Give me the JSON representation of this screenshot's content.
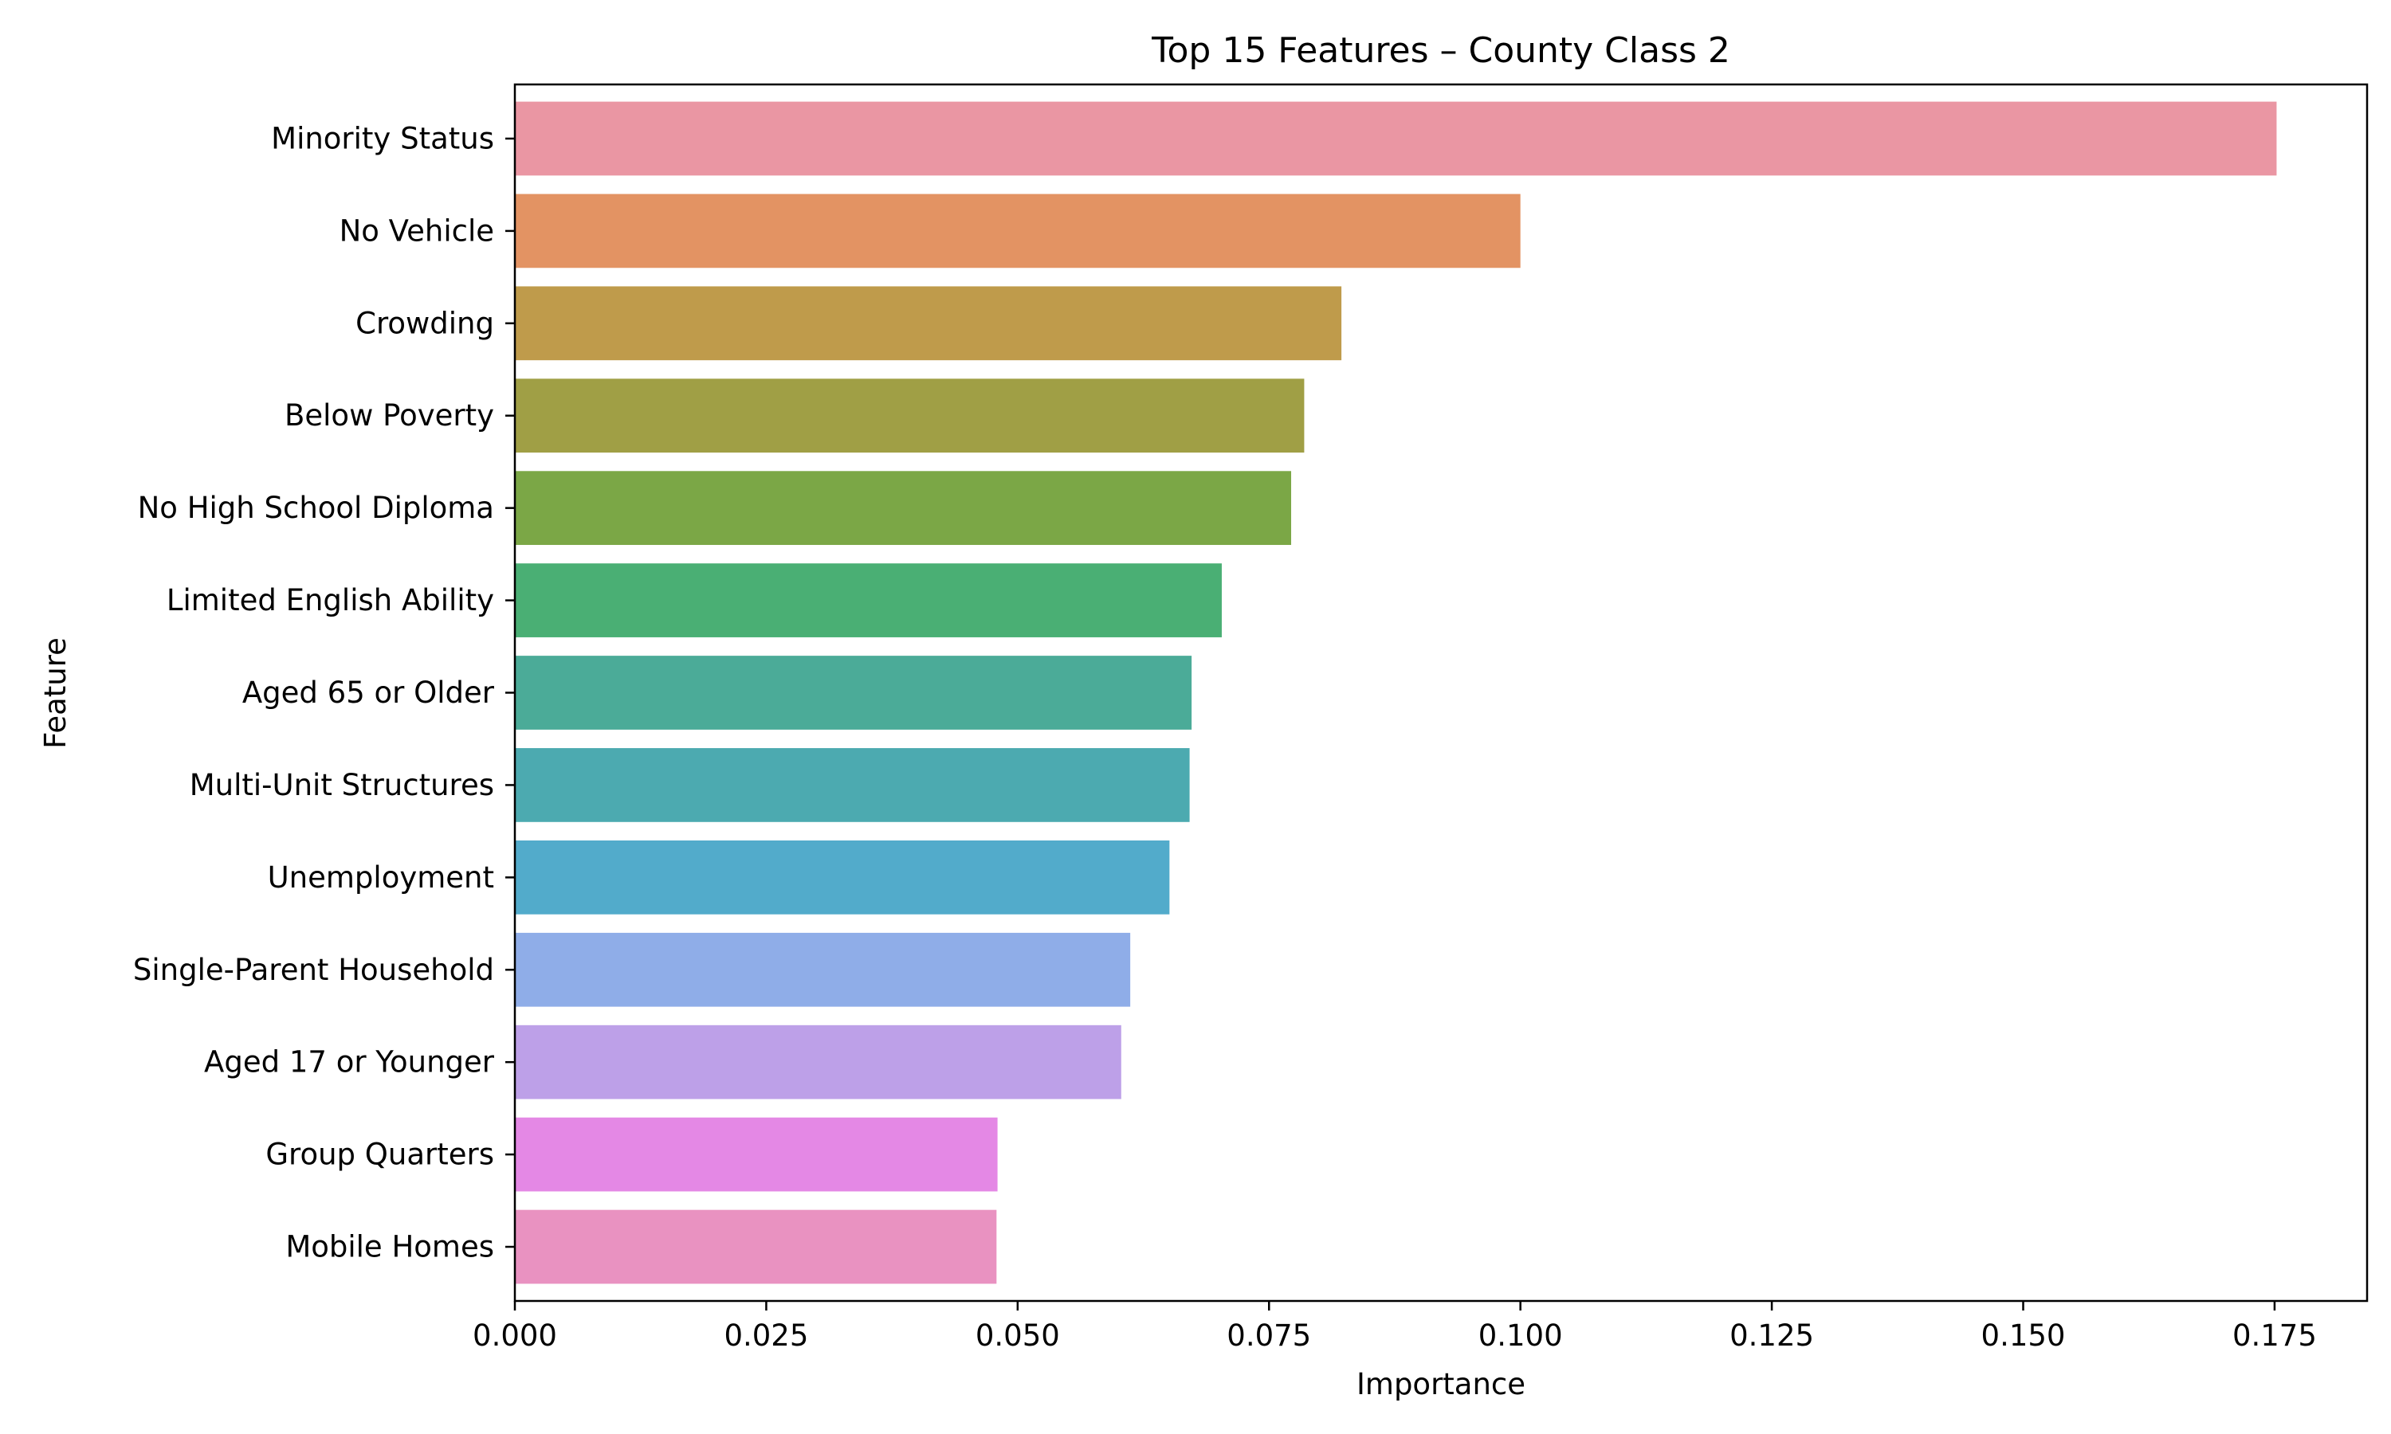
{
  "chart_data": {
    "type": "bar",
    "orientation": "horizontal",
    "title": "Top 15 Features – County Class 2",
    "xlabel": "Importance",
    "ylabel": "Feature",
    "xlim": [
      0,
      0.1842
    ],
    "xticks": [
      "0.000",
      "0.025",
      "0.050",
      "0.075",
      "0.100",
      "0.125",
      "0.150",
      "0.175"
    ],
    "grid": false,
    "legend": "none",
    "categories": [
      "Minority Status",
      "No Vehicle",
      "Crowding",
      "Below Poverty",
      "No High School Diploma",
      "Limited English Ability",
      "Aged 65 or Older",
      "Multi-Unit Structures",
      "Unemployment",
      "Single-Parent Household",
      "Aged 17 or Younger",
      "Group Quarters",
      "Mobile Homes"
    ],
    "values": [
      0.1752,
      0.1,
      0.0822,
      0.0785,
      0.0772,
      0.0703,
      0.0673,
      0.0671,
      0.0651,
      0.0612,
      0.0603,
      0.048,
      0.0479
    ],
    "colors": [
      "#ea96a3",
      "#e39363",
      "#bf9b4b",
      "#a09f45",
      "#7ba746",
      "#4aaf74",
      "#4bab98",
      "#4caab0",
      "#52abcb",
      "#8fade8",
      "#bda0e8",
      "#e488e5",
      "#e992c1"
    ]
  }
}
